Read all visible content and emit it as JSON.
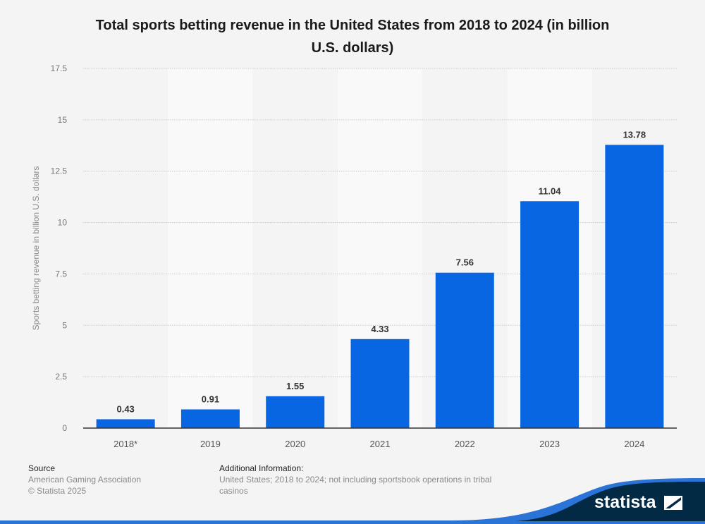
{
  "chart_data": {
    "type": "bar",
    "title": "Total sports betting revenue in the United States from 2018 to 2024 (in billion U.S. dollars)",
    "categories": [
      "2018*",
      "2019",
      "2020",
      "2021",
      "2022",
      "2023",
      "2024"
    ],
    "values": [
      0.43,
      0.91,
      1.55,
      4.33,
      7.56,
      11.04,
      13.78
    ],
    "value_labels": [
      "0.43",
      "0.91",
      "1.55",
      "4.33",
      "7.56",
      "11.04",
      "13.78"
    ],
    "xlabel": "",
    "ylabel": "Sports betting revenue in billion U.S. dollars",
    "ylim": [
      0,
      17.5
    ],
    "yticks": [
      0,
      2.5,
      5,
      7.5,
      10,
      12.5,
      15,
      17.5
    ],
    "ytick_labels": [
      "0",
      "2.5",
      "5",
      "7.5",
      "10",
      "12.5",
      "15",
      "17.5"
    ],
    "grid": true,
    "legend": "none",
    "bar_color": "#0866e3"
  },
  "title_line1": "Total sports betting revenue in the United States from 2018 to 2024 (in billion",
  "title_line2": "U.S. dollars)",
  "footer": {
    "source_heading": "Source",
    "source_lines": [
      "American Gaming Association",
      "© Statista 2025"
    ],
    "info_heading": "Additional Information:",
    "info_text": "United States; 2018 to 2024; not including sportsbook operations in tribal casinos"
  },
  "brand": {
    "name": "statista",
    "logo_icon": "statista-logo-icon",
    "colors": {
      "dark": "#032a44",
      "accent": "#2a74d8"
    }
  }
}
